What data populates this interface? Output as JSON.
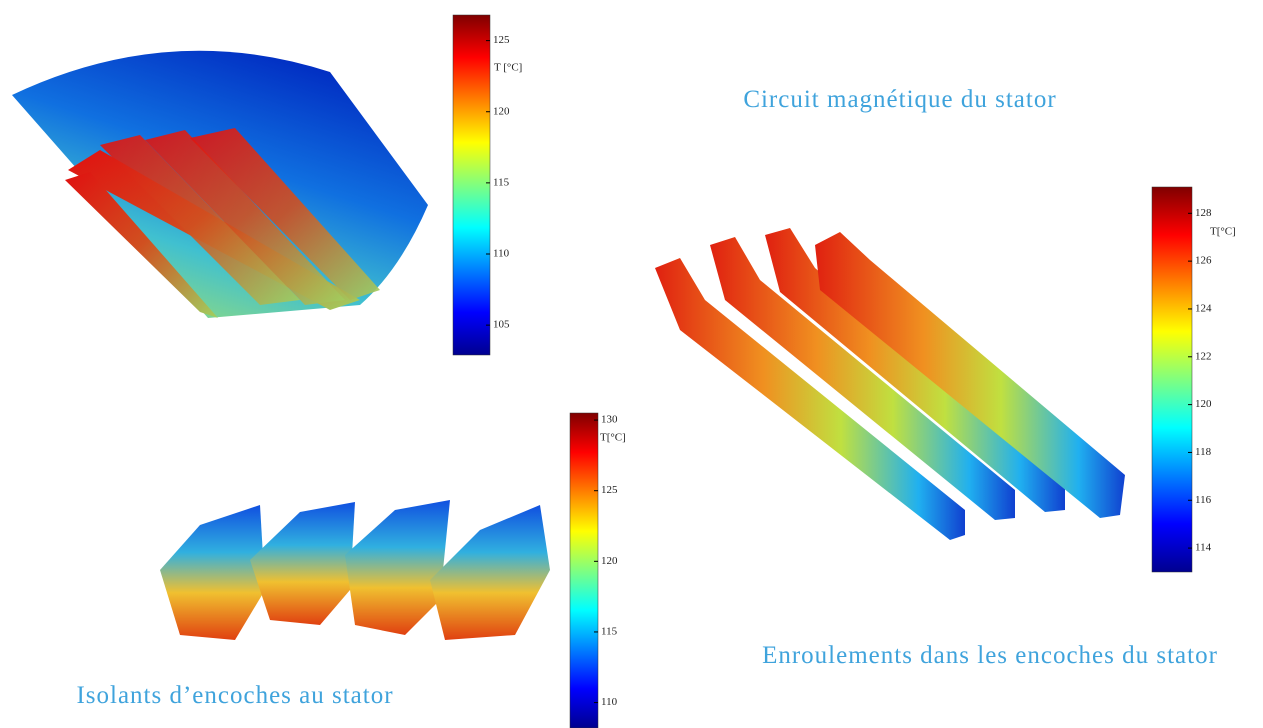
{
  "panels": [
    {
      "caption": "Circuit magnétique du stator",
      "colorbar": {
        "label": "T [°C]",
        "lim": [
          102.9,
          126.8
        ],
        "ticks": [
          105,
          110,
          115,
          120,
          125
        ]
      }
    },
    {
      "caption": "Enroulements dans les encoches du stator",
      "colorbar": {
        "label": "T[°C]",
        "lim": [
          113.0,
          129.1
        ],
        "ticks": [
          114,
          116,
          118,
          120,
          122,
          124,
          126,
          128
        ]
      }
    },
    {
      "caption": "Isolants d’encoches au stator",
      "colorbar": {
        "label": "T[°C]",
        "lim": [
          108.2,
          130.5
        ],
        "ticks": [
          110,
          115,
          120,
          125,
          130
        ]
      }
    }
  ]
}
